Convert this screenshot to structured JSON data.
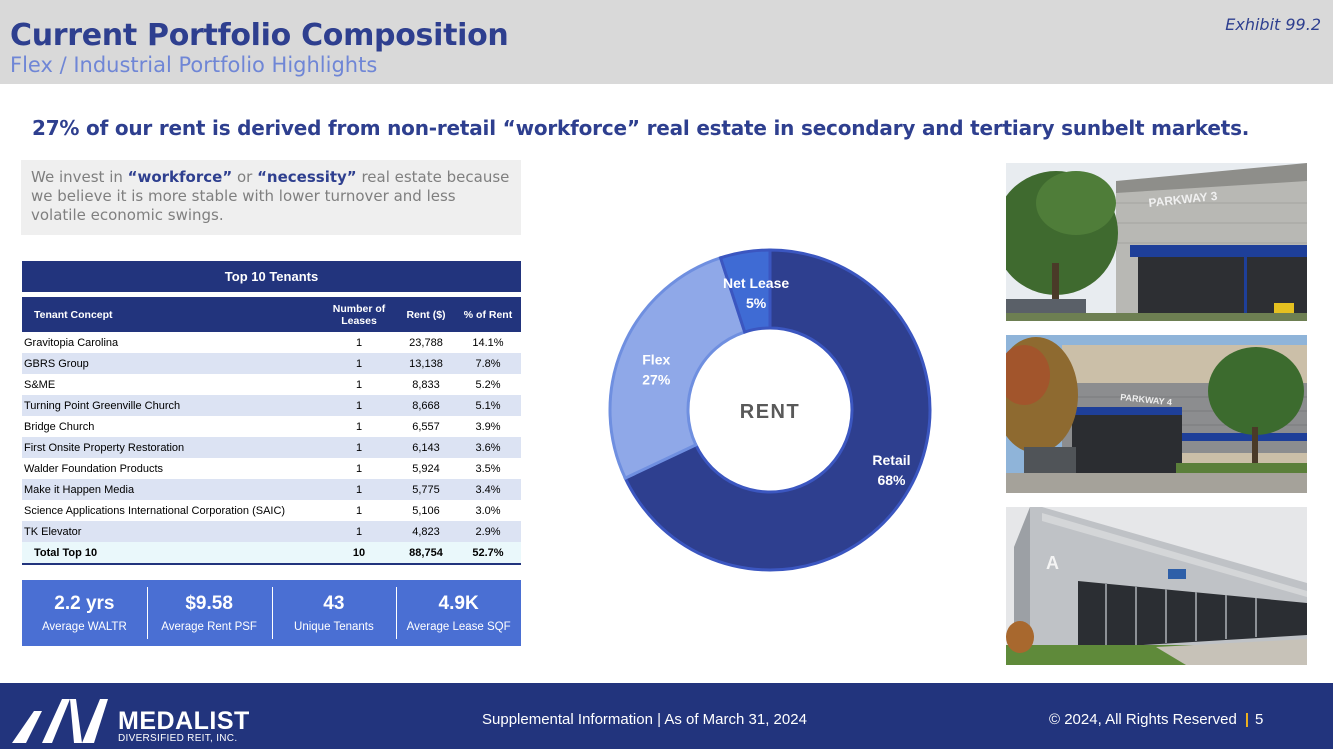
{
  "header": {
    "title": "Current Portfolio Composition",
    "subtitle": "Flex / Industrial Portfolio Highlights",
    "exhibit": "Exhibit 99.2"
  },
  "headline": "27% of our rent is derived from non-retail “workforce” real estate in secondary and tertiary sunbelt markets.",
  "intro": {
    "part1": "We invest in ",
    "bold1": "“workforce”",
    "part2": " or ",
    "bold2": "“necessity”",
    "part3": " real estate because we believe it is more stable with lower turnover and less volatile economic swings."
  },
  "table": {
    "title": "Top 10 Tenants",
    "headers": [
      "Tenant Concept",
      "Number of Leases",
      "Rent ($)",
      "% of Rent"
    ],
    "rows": [
      [
        "Gravitopia Carolina",
        "1",
        "23,788",
        "14.1%"
      ],
      [
        "GBRS Group",
        "1",
        "13,138",
        "7.8%"
      ],
      [
        "S&ME",
        "1",
        "8,833",
        "5.2%"
      ],
      [
        "Turning Point Greenville Church",
        "1",
        "8,668",
        "5.1%"
      ],
      [
        "Bridge Church",
        "1",
        "6,557",
        "3.9%"
      ],
      [
        "First Onsite Property Restoration",
        "1",
        "6,143",
        "3.6%"
      ],
      [
        "Walder Foundation Products",
        "1",
        "5,924",
        "3.5%"
      ],
      [
        "Make it Happen Media",
        "1",
        "5,775",
        "3.4%"
      ],
      [
        "Science Applications International Corporation (SAIC)",
        "1",
        "5,106",
        "3.0%"
      ],
      [
        "TK Elevator",
        "1",
        "4,823",
        "2.9%"
      ]
    ],
    "total": [
      "Total Top 10",
      "10",
      "88,754",
      "52.7%"
    ]
  },
  "stats": [
    {
      "value": "2.2 yrs",
      "label": "Average WALTR"
    },
    {
      "value": "$9.58",
      "label": "Average Rent PSF"
    },
    {
      "value": "43",
      "label": "Unique Tenants"
    },
    {
      "value": "4.9K",
      "label": "Average Lease SQF"
    }
  ],
  "chart_data": {
    "type": "pie",
    "center_label": "RENT",
    "slices": [
      {
        "name": "Retail",
        "value": 68,
        "label": "68%",
        "color": "#2e3f8f"
      },
      {
        "name": "Flex",
        "value": 27,
        "label": "27%",
        "color": "#8fa8e8"
      },
      {
        "name": "Net Lease",
        "value": 5,
        "label": "5%",
        "color": "#3f6bd4"
      }
    ]
  },
  "photos": [
    {
      "name": "building-photo-parkway-3",
      "sign": "PARKWAY 3"
    },
    {
      "name": "building-photo-parkway-4",
      "sign": "PARKWAY 4"
    },
    {
      "name": "building-photo-a",
      "sign": "A"
    }
  ],
  "footer": {
    "logo": "MEDALIST",
    "logo_sub": "DIVERSIFIED REIT, INC.",
    "center": "Supplemental Information | As of March 31, 2024",
    "copyright": "© 2024, All Rights Reserved",
    "page": "5"
  }
}
